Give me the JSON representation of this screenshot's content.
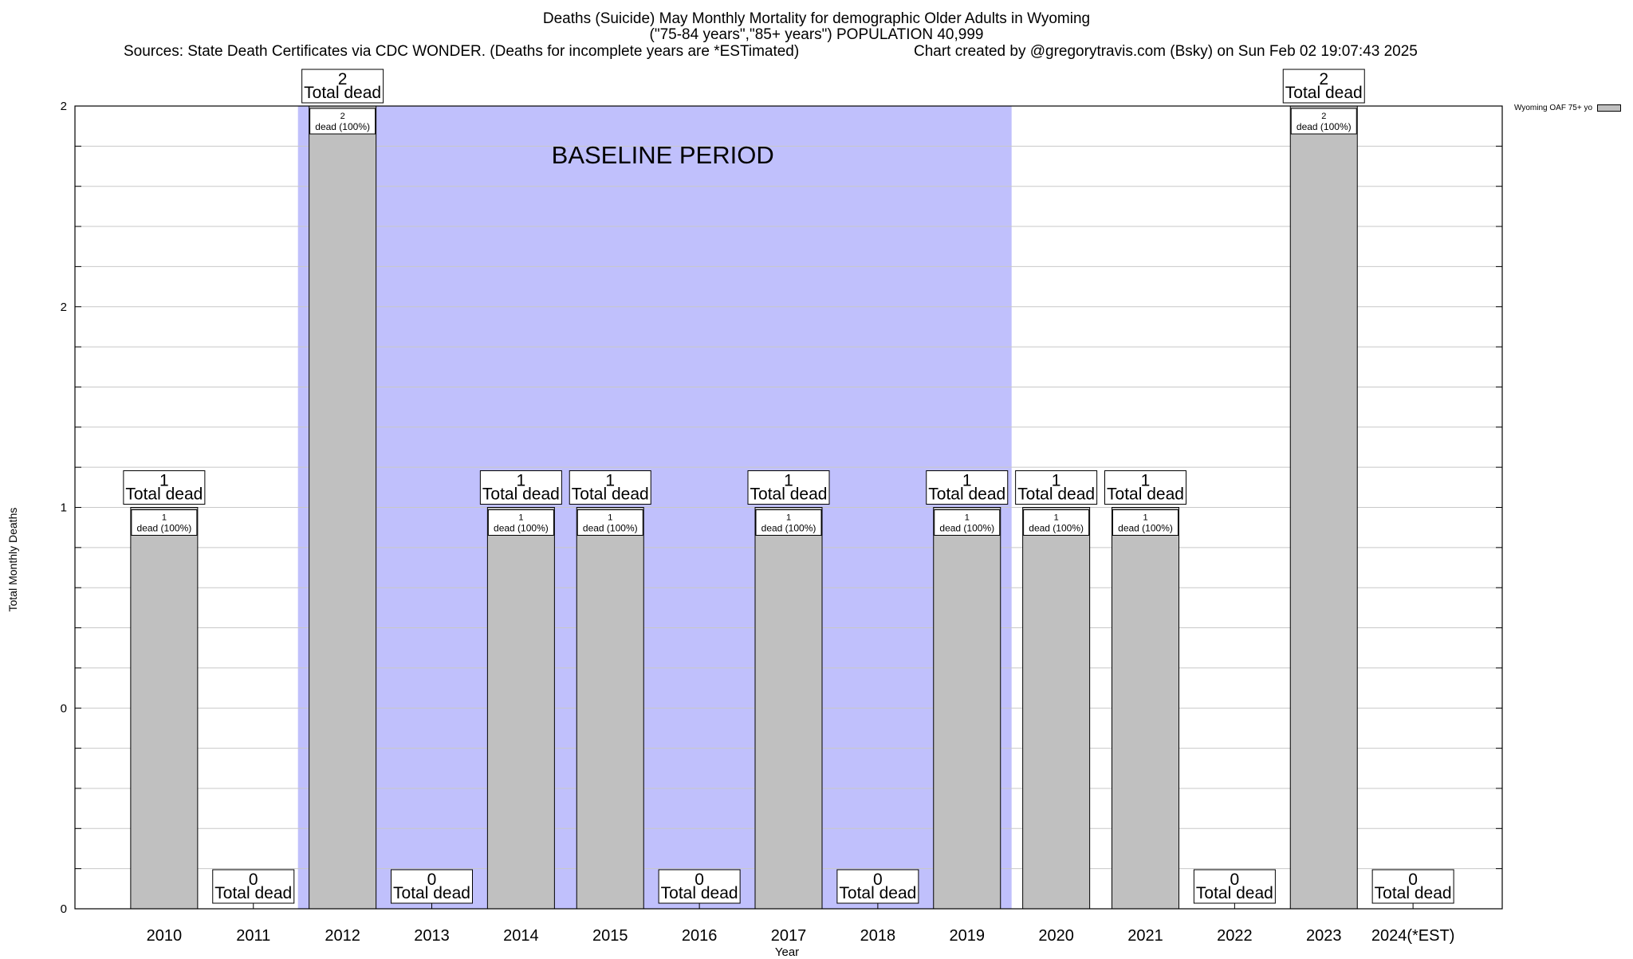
{
  "header": {
    "title_line1": "Deaths (Suicide) May Monthly Mortality for demographic Older Adults in Wyoming",
    "title_line2": "(\"75-84 years\",\"85+ years\") POPULATION 40,999",
    "sources": "Sources: State Death Certificates via CDC WONDER. (Deaths for incomplete years are *ESTimated)",
    "credit": "Chart created by @gregorytravis.com (Bsky) on Sun Feb 02 19:07:43 2025"
  },
  "chart_data": {
    "type": "bar",
    "xlabel": "Year",
    "ylabel": "Total Monthly Deaths",
    "ylim": [
      0,
      2
    ],
    "y_tick_labels": [
      "0",
      "0",
      "1",
      "2",
      "2"
    ],
    "grid": true,
    "legend_position": "top-right",
    "baseline_label": "BASELINE PERIOD",
    "baseline_range": [
      "2012",
      "2019"
    ],
    "baseline_color": "#c0c0fc",
    "bar_color": "#c0c0c0",
    "total_label_suffix": "Total dead",
    "inner_label_suffix": "dead (100%)",
    "categories": [
      "2010",
      "2011",
      "2012",
      "2013",
      "2014",
      "2015",
      "2016",
      "2017",
      "2018",
      "2019",
      "2020",
      "2021",
      "2022",
      "2023",
      "2024(*EST)"
    ],
    "series": [
      {
        "name": "Wyoming OAF 75+ yo",
        "values": [
          1,
          0,
          2,
          0,
          1,
          1,
          0,
          1,
          0,
          1,
          1,
          1,
          0,
          2,
          0
        ]
      }
    ]
  }
}
